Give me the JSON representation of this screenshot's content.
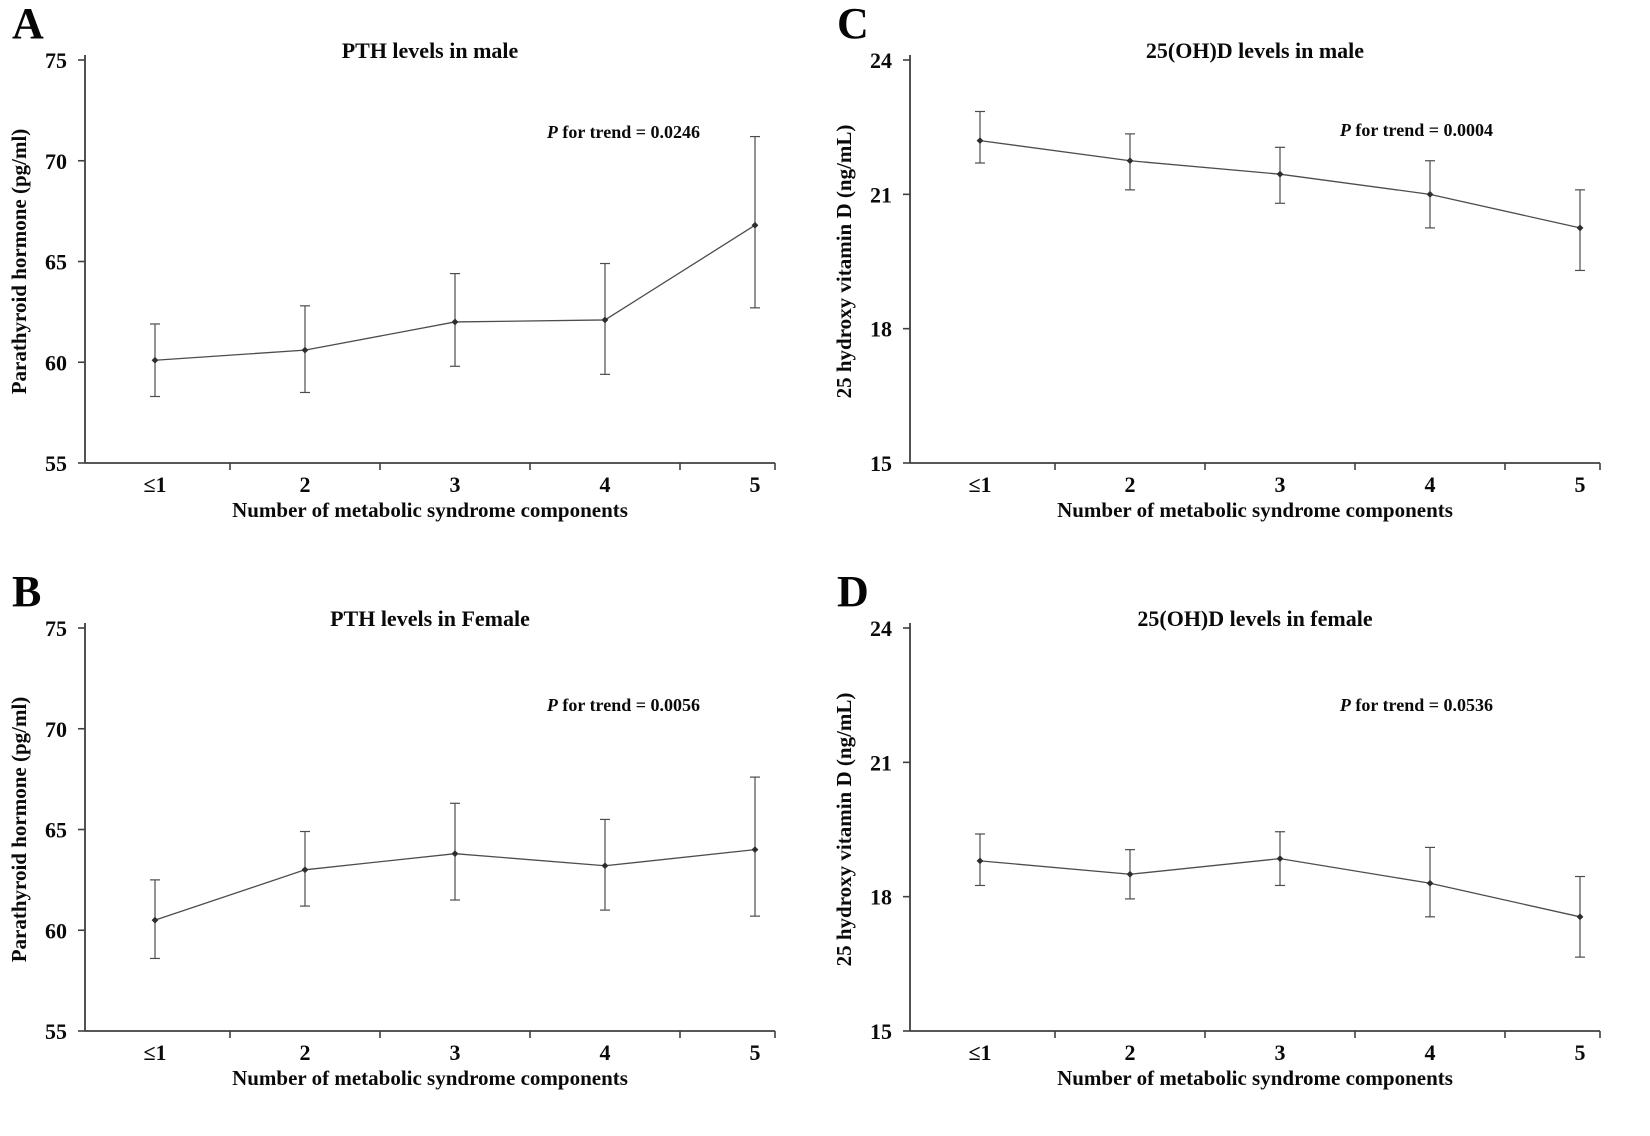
{
  "figure": {
    "p_italic": "P",
    "p_connector": " for trend = ",
    "x_axis_label": "Number of metabolic syndrome components",
    "x_categories": [
      "≤1",
      "2",
      "3",
      "4",
      "5"
    ]
  },
  "chart_data": [
    {
      "panel": "A",
      "type": "line",
      "title": "PTH levels in male",
      "ylabel": "Parathyroid hormone (pg/ml)",
      "xlabel": "Number of metabolic syndrome components",
      "categories": [
        "≤1",
        "2",
        "3",
        "4",
        "5"
      ],
      "ylim": [
        55,
        75
      ],
      "yticks": [
        55,
        60,
        65,
        70,
        75
      ],
      "p_for_trend": "0.0246",
      "legend": "none",
      "grid": false,
      "series": [
        {
          "name": "PTH in male",
          "values": [
            60.1,
            60.6,
            62.0,
            62.1,
            66.8
          ],
          "err_low": [
            58.3,
            58.5,
            59.8,
            59.4,
            62.7
          ],
          "err_high": [
            61.9,
            62.8,
            64.4,
            64.9,
            71.2
          ]
        }
      ]
    },
    {
      "panel": "C",
      "type": "line",
      "title": "25(OH)D levels in male",
      "ylabel": "25 hydroxy vitamin D (ng/mL)",
      "xlabel": "Number of metabolic syndrome components",
      "categories": [
        "≤1",
        "2",
        "3",
        "4",
        "5"
      ],
      "ylim": [
        15,
        24
      ],
      "yticks": [
        15,
        18,
        21,
        24
      ],
      "p_for_trend": "0.0004",
      "legend": "none",
      "grid": false,
      "series": [
        {
          "name": "25(OH)D in male",
          "values": [
            22.2,
            21.75,
            21.45,
            21.0,
            20.25
          ],
          "err_low": [
            21.7,
            21.1,
            20.8,
            20.25,
            19.3
          ],
          "err_high": [
            22.85,
            22.35,
            22.05,
            21.75,
            21.1
          ]
        }
      ]
    },
    {
      "panel": "B",
      "type": "line",
      "title": "PTH levels in Female",
      "ylabel": "Parathyroid hormone (pg/ml)",
      "xlabel": "Number of metabolic syndrome components",
      "categories": [
        "≤1",
        "2",
        "3",
        "4",
        "5"
      ],
      "ylim": [
        55,
        75
      ],
      "yticks": [
        55,
        60,
        65,
        70,
        75
      ],
      "p_for_trend": "0.0056",
      "legend": "none",
      "grid": false,
      "series": [
        {
          "name": "PTH in female",
          "values": [
            60.5,
            63.0,
            63.8,
            63.2,
            64.0
          ],
          "err_low": [
            58.6,
            61.2,
            61.5,
            61.0,
            60.7
          ],
          "err_high": [
            62.5,
            64.9,
            66.3,
            65.5,
            67.6
          ]
        }
      ]
    },
    {
      "panel": "D",
      "type": "line",
      "title": "25(OH)D levels in female",
      "ylabel": "25 hydroxy vitamin D (ng/mL)",
      "xlabel": "Number of metabolic syndrome components",
      "categories": [
        "≤1",
        "2",
        "3",
        "4",
        "5"
      ],
      "ylim": [
        15,
        24
      ],
      "yticks": [
        15,
        18,
        21,
        24
      ],
      "p_for_trend": "0.0536",
      "legend": "none",
      "grid": false,
      "series": [
        {
          "name": "25(OH)D in female",
          "values": [
            18.8,
            18.5,
            18.85,
            18.3,
            17.55
          ],
          "err_low": [
            18.25,
            17.95,
            18.25,
            17.55,
            16.65
          ],
          "err_high": [
            19.4,
            19.05,
            19.45,
            19.1,
            18.45
          ]
        }
      ]
    }
  ]
}
